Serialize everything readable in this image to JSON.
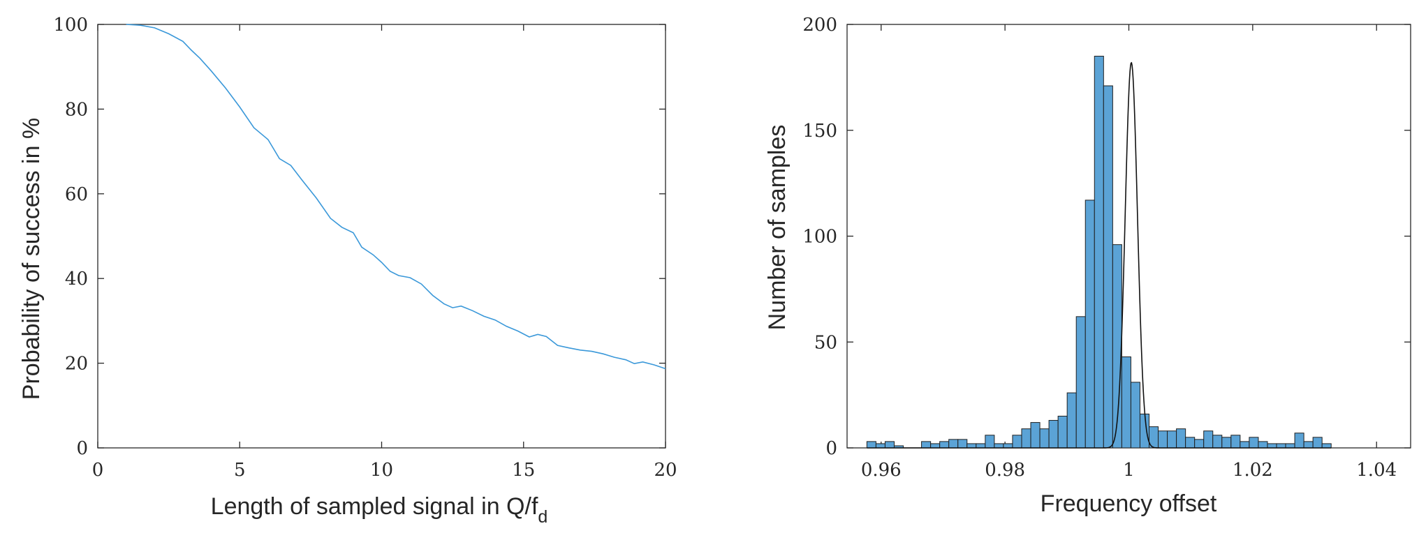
{
  "chart_data": [
    {
      "type": "line",
      "xlabel": "Length of sampled signal in Q/f",
      "xlabel_subscript": "d",
      "ylabel": "Probability of success in %",
      "xlim": [
        0,
        20
      ],
      "ylim": [
        0,
        100
      ],
      "xticks": [
        0,
        5,
        10,
        15,
        20
      ],
      "yticks": [
        0,
        20,
        40,
        60,
        80,
        100
      ],
      "grid": false,
      "color": "#3a98d9",
      "series": [
        {
          "x": [
            1.0,
            1.5,
            2.0,
            2.5,
            3.0,
            3.3,
            3.6,
            4.0,
            4.5,
            5.0,
            5.5,
            6.0,
            6.4,
            6.8,
            7.2,
            7.7,
            8.2,
            8.6,
            9.0,
            9.3,
            9.7,
            10.0,
            10.3,
            10.6,
            11.0,
            11.4,
            11.8,
            12.2,
            12.5,
            12.8,
            13.2,
            13.6,
            14.0,
            14.4,
            14.8,
            15.2,
            15.5,
            15.8,
            16.2,
            16.6,
            17.0,
            17.4,
            17.8,
            18.2,
            18.6,
            18.9,
            19.2,
            19.6,
            20.0
          ],
          "values": [
            100.0,
            99.8,
            99.2,
            97.8,
            96.0,
            93.9,
            92.0,
            89.0,
            85.0,
            80.5,
            75.6,
            72.8,
            68.3,
            66.7,
            63.2,
            59.0,
            54.2,
            52.1,
            50.8,
            47.4,
            45.6,
            43.8,
            41.7,
            40.7,
            40.2,
            38.7,
            36.0,
            34.0,
            33.1,
            33.5,
            32.4,
            31.1,
            30.2,
            28.7,
            27.6,
            26.2,
            26.8,
            26.3,
            24.2,
            23.6,
            23.1,
            22.8,
            22.2,
            21.4,
            20.8,
            19.9,
            20.3,
            19.6,
            18.7
          ]
        }
      ]
    },
    {
      "type": "bar",
      "subtype": "histogram",
      "xlabel": "Frequency offset",
      "ylabel": "Number of samples",
      "xlim": [
        0.9545,
        1.0455
      ],
      "ylim": [
        0,
        200
      ],
      "xticks": [
        0.96,
        0.98,
        1,
        1.02,
        1.04
      ],
      "xtick_labels": [
        "0.96",
        "0.98",
        "1",
        "1.02",
        "1.04"
      ],
      "yticks": [
        0,
        50,
        100,
        150,
        200
      ],
      "grid": false,
      "bar_color": "#5ba3d6",
      "edge_color": "#1f1f1f",
      "bin_start": 0.9577,
      "bin_width": 0.00147,
      "counts": [
        3,
        2,
        3,
        1,
        0,
        0,
        3,
        2,
        3,
        4,
        4,
        2,
        2,
        6,
        2,
        2,
        6,
        9,
        12,
        9,
        13,
        15,
        26,
        62,
        117,
        185,
        171,
        96,
        43,
        31,
        16,
        10,
        8,
        8,
        9,
        5,
        4,
        8,
        6,
        5,
        6,
        3,
        5,
        3,
        2,
        2,
        2,
        7,
        3,
        5,
        2
      ],
      "fit_curve": {
        "type": "gaussian",
        "mean": 1.0004,
        "sigma": 0.00099,
        "peak": 182
      }
    }
  ]
}
